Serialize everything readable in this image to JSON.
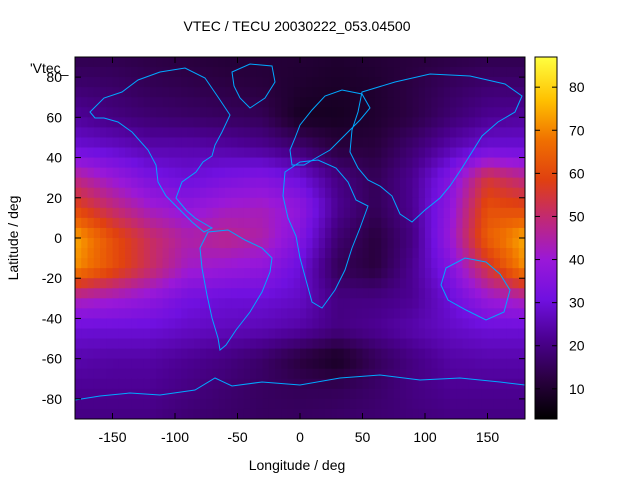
{
  "title": "VTEC / TECU 20030222_053.04500",
  "corner_label": "'Vtec_",
  "x_axis": {
    "label": "Longitude / deg",
    "range": [
      -180,
      180
    ],
    "ticks": [
      -150,
      -100,
      -50,
      0,
      50,
      100,
      150
    ]
  },
  "y_axis": {
    "label": "Latitude / deg",
    "range": [
      -90,
      90
    ],
    "ticks": [
      -80,
      -60,
      -40,
      -20,
      0,
      20,
      40,
      60,
      80
    ]
  },
  "colorbar": {
    "range": [
      3,
      87
    ],
    "ticks": [
      10,
      20,
      30,
      40,
      50,
      60,
      70,
      80
    ],
    "palette": [
      "#000000",
      "#2a0040",
      "#4b0090",
      "#7010e0",
      "#9a18d8",
      "#c02878",
      "#e04010",
      "#f07000",
      "#ffc000",
      "#ffff40"
    ]
  },
  "chart_data": {
    "type": "heatmap",
    "title": "VTEC / TECU 20030222_053.04500",
    "xlabel": "Longitude / deg",
    "ylabel": "Latitude / deg",
    "xlim": [
      -180,
      180
    ],
    "ylim": [
      -90,
      90
    ],
    "color_range": [
      3,
      87
    ],
    "x": [
      -180,
      -150,
      -120,
      -90,
      -60,
      -30,
      0,
      30,
      60,
      90,
      120,
      150,
      180
    ],
    "y": [
      90,
      75,
      60,
      45,
      30,
      15,
      0,
      -15,
      -30,
      -45,
      -60,
      -75,
      -90
    ],
    "z": [
      [
        14,
        14,
        13,
        12,
        11,
        11,
        11,
        10,
        11,
        12,
        13,
        14,
        14
      ],
      [
        18,
        17,
        15,
        14,
        13,
        12,
        10,
        9,
        10,
        13,
        16,
        18,
        18
      ],
      [
        23,
        20,
        18,
        17,
        16,
        15,
        8,
        8,
        10,
        13,
        18,
        22,
        23
      ],
      [
        30,
        28,
        25,
        25,
        24,
        22,
        18,
        12,
        12,
        18,
        25,
        30,
        30
      ],
      [
        48,
        40,
        33,
        30,
        33,
        35,
        30,
        20,
        15,
        22,
        35,
        55,
        48
      ],
      [
        60,
        50,
        42,
        38,
        42,
        43,
        38,
        22,
        15,
        22,
        38,
        62,
        60
      ],
      [
        75,
        62,
        52,
        45,
        48,
        45,
        35,
        18,
        12,
        20,
        40,
        65,
        75
      ],
      [
        72,
        62,
        52,
        42,
        40,
        38,
        30,
        15,
        12,
        22,
        35,
        55,
        72
      ],
      [
        45,
        42,
        38,
        32,
        30,
        30,
        28,
        20,
        20,
        22,
        30,
        40,
        45
      ],
      [
        30,
        30,
        30,
        28,
        27,
        26,
        24,
        20,
        22,
        25,
        28,
        30,
        30
      ],
      [
        25,
        24,
        24,
        22,
        20,
        17,
        12,
        8,
        15,
        20,
        24,
        25,
        25
      ],
      [
        22,
        22,
        22,
        20,
        18,
        16,
        15,
        15,
        17,
        20,
        22,
        22,
        22
      ],
      [
        20,
        20,
        20,
        18,
        17,
        16,
        16,
        17,
        18,
        19,
        20,
        20,
        20
      ]
    ]
  }
}
